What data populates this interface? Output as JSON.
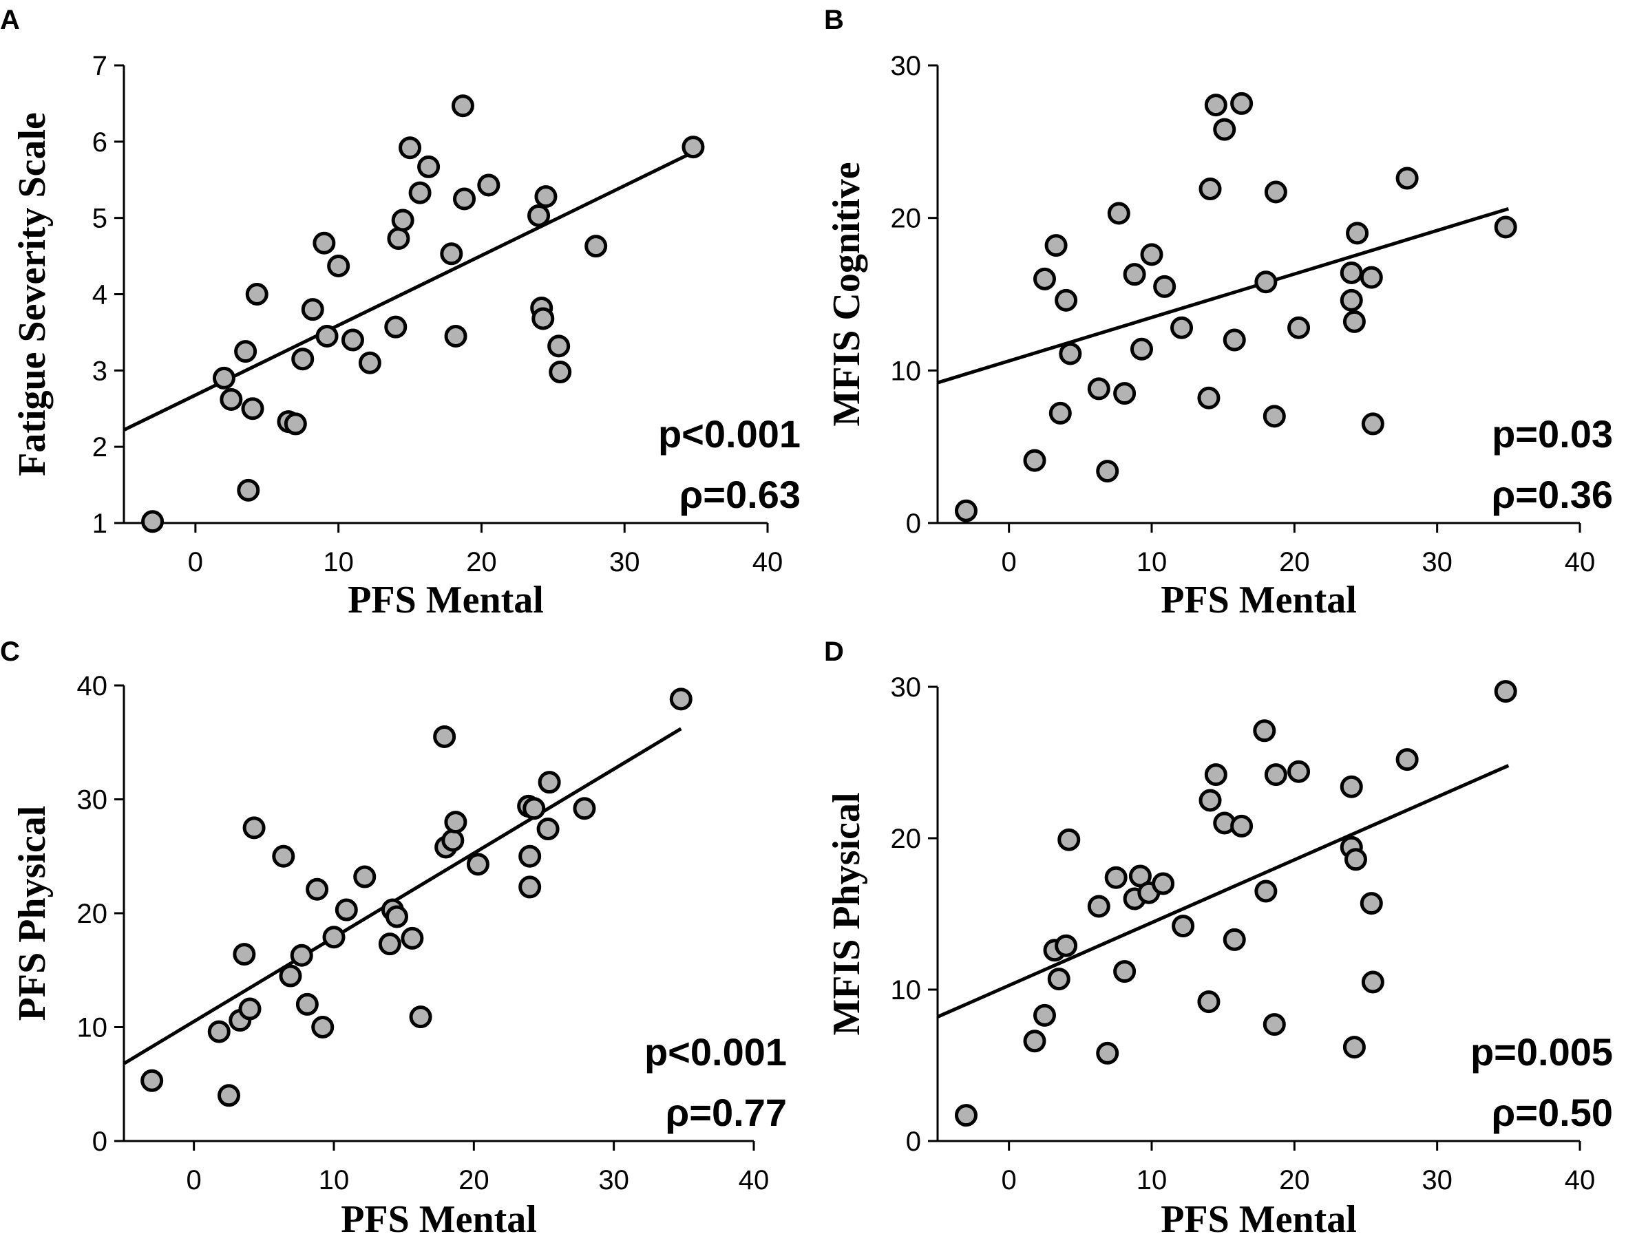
{
  "chart_data": [
    {
      "panel": "A",
      "type": "scatter",
      "xlabel": "PFS Mental",
      "ylabel": "Fatigue Severity Scale",
      "xlim": [
        -5,
        40
      ],
      "ylim": [
        1,
        7
      ],
      "xticks": [
        0,
        10,
        20,
        30,
        40
      ],
      "yticks": [
        1,
        2,
        3,
        4,
        5,
        6,
        7
      ],
      "p_text": "p<0.001",
      "rho_text": "ρ=0.63",
      "fit": {
        "x1": -5,
        "y1": 2.22,
        "x2": 35,
        "y2": 5.88
      },
      "points": [
        [
          -3,
          1.02
        ],
        [
          2,
          2.9
        ],
        [
          2.5,
          2.62
        ],
        [
          3.5,
          3.25
        ],
        [
          3.7,
          1.43
        ],
        [
          4,
          2.5
        ],
        [
          4.3,
          4.0
        ],
        [
          6.5,
          2.33
        ],
        [
          7,
          2.3
        ],
        [
          7.5,
          3.15
        ],
        [
          8.2,
          3.8
        ],
        [
          9,
          4.67
        ],
        [
          9.2,
          3.45
        ],
        [
          10,
          4.37
        ],
        [
          11,
          3.4
        ],
        [
          12.2,
          3.1
        ],
        [
          14,
          3.57
        ],
        [
          14.2,
          4.73
        ],
        [
          14.5,
          4.97
        ],
        [
          15,
          5.92
        ],
        [
          15.7,
          5.33
        ],
        [
          16.3,
          5.67
        ],
        [
          17.9,
          4.53
        ],
        [
          18.2,
          3.45
        ],
        [
          18.7,
          6.47
        ],
        [
          18.8,
          5.25
        ],
        [
          20.5,
          5.43
        ],
        [
          24,
          5.03
        ],
        [
          24.2,
          3.82
        ],
        [
          24.3,
          3.68
        ],
        [
          24.5,
          5.28
        ],
        [
          25.4,
          3.32
        ],
        [
          25.5,
          2.98
        ],
        [
          28,
          4.63
        ],
        [
          34.8,
          5.93
        ]
      ]
    },
    {
      "panel": "B",
      "type": "scatter",
      "xlabel": "PFS Mental",
      "ylabel": "MFIS Cognitive",
      "xlim": [
        -5,
        40
      ],
      "ylim": [
        0,
        30
      ],
      "xticks": [
        0,
        10,
        20,
        30,
        40
      ],
      "yticks": [
        0,
        10,
        20,
        30
      ],
      "p_text": "p=0.03",
      "rho_text": "ρ=0.36",
      "fit": {
        "x1": -5,
        "y1": 9.2,
        "x2": 35,
        "y2": 20.6
      },
      "points": [
        [
          -3,
          0.8
        ],
        [
          1.8,
          4.1
        ],
        [
          2.5,
          16
        ],
        [
          3.3,
          18.2
        ],
        [
          3.6,
          7.2
        ],
        [
          4,
          14.6
        ],
        [
          4.3,
          11.1
        ],
        [
          6.3,
          8.8
        ],
        [
          6.9,
          3.4
        ],
        [
          7.7,
          20.3
        ],
        [
          8.1,
          8.5
        ],
        [
          8.8,
          16.3
        ],
        [
          9.3,
          11.4
        ],
        [
          10,
          17.6
        ],
        [
          10.9,
          15.5
        ],
        [
          12.1,
          12.8
        ],
        [
          14,
          8.2
        ],
        [
          14.1,
          21.9
        ],
        [
          14.5,
          27.4
        ],
        [
          15.1,
          25.8
        ],
        [
          15.8,
          12
        ],
        [
          16.3,
          27.5
        ],
        [
          18,
          15.8
        ],
        [
          18.6,
          7
        ],
        [
          18.7,
          21.7
        ],
        [
          20.3,
          12.8
        ],
        [
          24,
          16.4
        ],
        [
          24,
          14.6
        ],
        [
          24.2,
          13.2
        ],
        [
          24.4,
          19
        ],
        [
          25.4,
          16.1
        ],
        [
          25.5,
          6.5
        ],
        [
          27.9,
          22.6
        ],
        [
          34.8,
          19.4
        ]
      ]
    },
    {
      "panel": "C",
      "type": "scatter",
      "xlabel": "PFS Mental",
      "ylabel": "PFS Physical",
      "xlim": [
        -5,
        40
      ],
      "ylim": [
        0,
        40
      ],
      "xticks": [
        0,
        10,
        20,
        30,
        40
      ],
      "yticks": [
        0,
        10,
        20,
        30,
        40
      ],
      "p_text": "p<0.001",
      "rho_text": "ρ=0.77",
      "fit": {
        "x1": -5,
        "y1": 6.8,
        "x2": 34.8,
        "y2": 36.2
      },
      "points": [
        [
          -3,
          5.3
        ],
        [
          1.8,
          9.6
        ],
        [
          2.5,
          4
        ],
        [
          3.3,
          10.6
        ],
        [
          3.6,
          16.4
        ],
        [
          4,
          11.6
        ],
        [
          4.3,
          27.5
        ],
        [
          6.4,
          25
        ],
        [
          6.9,
          14.5
        ],
        [
          7.7,
          16.3
        ],
        [
          8.1,
          12
        ],
        [
          8.8,
          22.1
        ],
        [
          9.2,
          10
        ],
        [
          10,
          17.9
        ],
        [
          10.9,
          20.3
        ],
        [
          12.2,
          23.2
        ],
        [
          14,
          17.3
        ],
        [
          14.2,
          20.3
        ],
        [
          14.5,
          19.7
        ],
        [
          15.6,
          17.8
        ],
        [
          16.2,
          10.9
        ],
        [
          17.9,
          35.5
        ],
        [
          18,
          25.8
        ],
        [
          18.5,
          26.4
        ],
        [
          18.7,
          28
        ],
        [
          20.3,
          24.3
        ],
        [
          23.9,
          29.4
        ],
        [
          24,
          22.3
        ],
        [
          24,
          25
        ],
        [
          24.3,
          29.2
        ],
        [
          25.3,
          27.4
        ],
        [
          25.4,
          31.5
        ],
        [
          27.9,
          29.2
        ],
        [
          34.8,
          38.8
        ]
      ]
    },
    {
      "panel": "D",
      "type": "scatter",
      "xlabel": "PFS Mental",
      "ylabel": "MFIS Physical",
      "xlim": [
        -5,
        40
      ],
      "ylim": [
        0,
        30
      ],
      "xticks": [
        0,
        10,
        20,
        30,
        40
      ],
      "yticks": [
        0,
        10,
        20,
        30
      ],
      "p_text": "p=0.005",
      "rho_text": "ρ=0.50",
      "fit": {
        "x1": -5,
        "y1": 8.2,
        "x2": 35,
        "y2": 24.8
      },
      "points": [
        [
          -3,
          1.7
        ],
        [
          1.8,
          6.6
        ],
        [
          2.5,
          8.3
        ],
        [
          3.2,
          12.6
        ],
        [
          3.5,
          10.7
        ],
        [
          4,
          12.9
        ],
        [
          4.2,
          19.9
        ],
        [
          6.3,
          15.5
        ],
        [
          6.9,
          5.8
        ],
        [
          7.5,
          17.4
        ],
        [
          8.1,
          11.2
        ],
        [
          8.8,
          16
        ],
        [
          9.2,
          17.5
        ],
        [
          9.8,
          16.4
        ],
        [
          10.8,
          17
        ],
        [
          12.2,
          14.2
        ],
        [
          14,
          9.2
        ],
        [
          14.1,
          22.5
        ],
        [
          14.5,
          24.2
        ],
        [
          15.1,
          21
        ],
        [
          15.8,
          13.3
        ],
        [
          16.3,
          20.8
        ],
        [
          17.9,
          27.1
        ],
        [
          18,
          16.5
        ],
        [
          18.6,
          7.7
        ],
        [
          18.7,
          24.2
        ],
        [
          20.3,
          24.4
        ],
        [
          24,
          23.4
        ],
        [
          24,
          19.4
        ],
        [
          24.2,
          6.2
        ],
        [
          24.3,
          18.6
        ],
        [
          25.4,
          15.7
        ],
        [
          25.5,
          10.5
        ],
        [
          27.9,
          25.2
        ],
        [
          34.8,
          29.7
        ]
      ]
    }
  ]
}
